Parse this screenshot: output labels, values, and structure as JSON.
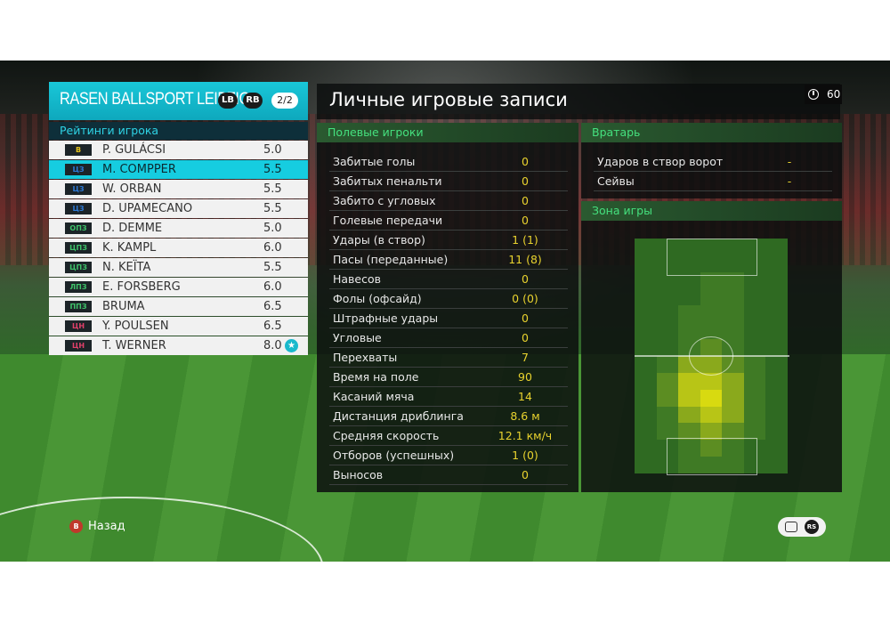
{
  "team": {
    "name": "RASEN BALLSPORT LEIPZIG",
    "lb": "LB",
    "rb": "RB",
    "page": "2/2",
    "ratings_header": "Рейтинги игрока",
    "players": [
      {
        "pos": "В",
        "pos_color": "#e8c51b",
        "name": "P. GULÁCSI",
        "rating": "5.0"
      },
      {
        "pos": "ЦЗ",
        "pos_color": "#2d7ad6",
        "name": "M. COMPPER",
        "rating": "5.5"
      },
      {
        "pos": "ЦЗ",
        "pos_color": "#2d7ad6",
        "name": "W. ORBAN",
        "rating": "5.5"
      },
      {
        "pos": "ЦЗ",
        "pos_color": "#2d7ad6",
        "name": "D. UPAMECANO",
        "rating": "5.5"
      },
      {
        "pos": "ОПЗ",
        "pos_color": "#3fc36a",
        "name": "D. DEMME",
        "rating": "5.0"
      },
      {
        "pos": "ЦПЗ",
        "pos_color": "#3fc36a",
        "name": "K. KAMPL",
        "rating": "6.0"
      },
      {
        "pos": "ЦПЗ",
        "pos_color": "#3fc36a",
        "name": "N. KEÏTA",
        "rating": "5.5"
      },
      {
        "pos": "ЛПЗ",
        "pos_color": "#3fc36a",
        "name": "E. FORSBERG",
        "rating": "6.0"
      },
      {
        "pos": "ППЗ",
        "pos_color": "#3fc36a",
        "name": "BRUMA",
        "rating": "6.5"
      },
      {
        "pos": "ЦН",
        "pos_color": "#e0406a",
        "name": "Y. POULSEN",
        "rating": "6.5"
      },
      {
        "pos": "ЦН",
        "pos_color": "#e0406a",
        "name": "T. WERNER",
        "rating": "8.0",
        "star": true
      }
    ],
    "selected_index": 1
  },
  "title": "Личные игровые записи",
  "timer": "60",
  "field_players": {
    "header": "Полевые игроки",
    "stats": [
      {
        "label": "Забитые голы",
        "value": "0"
      },
      {
        "label": "Забитых пенальти",
        "value": "0"
      },
      {
        "label": "Забито с угловых",
        "value": "0"
      },
      {
        "label": "Голевые передачи",
        "value": "0"
      },
      {
        "label": "Удары (в створ)",
        "value": "1 (1)"
      },
      {
        "label": "Пасы (переданные)",
        "value": "11 (8)"
      },
      {
        "label": "Навесов",
        "value": "0"
      },
      {
        "label": "Фолы (офсайд)",
        "value": "0 (0)"
      },
      {
        "label": "Штрафные удары",
        "value": "0"
      },
      {
        "label": "Угловые",
        "value": "0"
      },
      {
        "label": "Перехваты",
        "value": "7"
      },
      {
        "label": "Время на поле",
        "value": "90"
      },
      {
        "label": "Касаний мяча",
        "value": "14"
      },
      {
        "label": "Дистанция дриблинга",
        "value": "8.6 м"
      },
      {
        "label": "Средняя скорость",
        "value": "12.1 км/ч"
      },
      {
        "label": "Отборов (успешных)",
        "value": "1 (0)"
      },
      {
        "label": "Выносов",
        "value": "0"
      }
    ]
  },
  "goalkeeper": {
    "header": "Вратарь",
    "stats": [
      {
        "label": "Ударов в створ ворот",
        "value": "-"
      },
      {
        "label": "Сейвы",
        "value": "-"
      }
    ]
  },
  "zone": {
    "header": "Зона игры",
    "heatmap_grid": [
      [
        0,
        0,
        0,
        0,
        0,
        0,
        0
      ],
      [
        0,
        0,
        0,
        0,
        0,
        0,
        0
      ],
      [
        0,
        0,
        0,
        1,
        1,
        0,
        0
      ],
      [
        0,
        0,
        0,
        1,
        1,
        0,
        0
      ],
      [
        0,
        0,
        1,
        1,
        1,
        0,
        0
      ],
      [
        0,
        0,
        1,
        1,
        1,
        0,
        0
      ],
      [
        0,
        0,
        1,
        2,
        1,
        0,
        0
      ],
      [
        0,
        1,
        3,
        3,
        2,
        1,
        0
      ],
      [
        0,
        2,
        4,
        4,
        3,
        1,
        0
      ],
      [
        0,
        2,
        4,
        5,
        3,
        1,
        0
      ],
      [
        0,
        1,
        3,
        4,
        3,
        1,
        0
      ],
      [
        0,
        1,
        2,
        3,
        2,
        1,
        0
      ],
      [
        0,
        0,
        1,
        2,
        1,
        0,
        0
      ],
      [
        0,
        0,
        1,
        1,
        1,
        0,
        0
      ]
    ]
  },
  "footer": {
    "back_key": "B",
    "back_label": "Назад",
    "rs_label": "RS"
  }
}
